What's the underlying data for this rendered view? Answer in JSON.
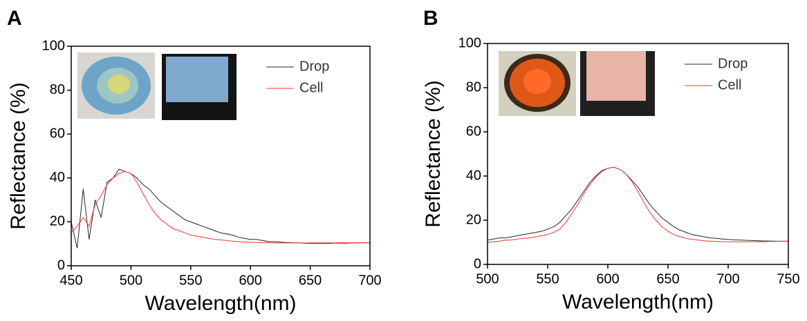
{
  "chart_data": [
    {
      "type": "line",
      "panel_label": "A",
      "xlabel": "Wavelength(nm)",
      "ylabel": "Reflectance (%)",
      "x": [
        450,
        455,
        460,
        465,
        470,
        475,
        480,
        485,
        490,
        495,
        500,
        505,
        510,
        515,
        520,
        525,
        530,
        535,
        540,
        545,
        550,
        555,
        560,
        565,
        570,
        575,
        580,
        585,
        590,
        595,
        600,
        605,
        610,
        615,
        620,
        625,
        630,
        635,
        640,
        645,
        650,
        655,
        660,
        665,
        670,
        675,
        680,
        685,
        690,
        695,
        700
      ],
      "series": [
        {
          "name": "Drop",
          "color": "#222222",
          "values": [
            20,
            8,
            35,
            12,
            30,
            22,
            38,
            40,
            44,
            43,
            42,
            40,
            37,
            35,
            32,
            29,
            27,
            25,
            23,
            21,
            20,
            19,
            18,
            17,
            16,
            15,
            14.5,
            14,
            13,
            12.5,
            12,
            12,
            11.5,
            11,
            11,
            10.8,
            10.6,
            10.5,
            10.4,
            10.3,
            10.2,
            10.2,
            10.2,
            10.2,
            10.3,
            10.3,
            10.3,
            10.4,
            10.4,
            10.5,
            10.5
          ]
        },
        {
          "name": "Cell",
          "color": "#ff3030",
          "values": [
            15,
            18,
            22,
            18,
            28,
            32,
            37,
            40,
            42,
            43,
            42,
            38,
            33,
            28,
            24,
            21,
            19,
            17,
            16,
            15,
            14,
            13.5,
            13,
            12.5,
            12,
            11.8,
            11.5,
            11.2,
            11,
            10.8,
            10.7,
            10.6,
            10.5,
            10.5,
            10.4,
            10.4,
            10.4,
            10.4,
            10.4,
            10.4,
            10.4,
            10.4,
            10.4,
            10.4,
            10.4,
            10.5,
            10.5,
            10.5,
            10.5,
            10.5,
            10.5
          ]
        }
      ],
      "xlim": [
        450,
        700
      ],
      "ylim": [
        0,
        100
      ],
      "xticks": [
        450,
        500,
        550,
        600,
        650,
        700
      ],
      "yticks": [
        0,
        20,
        40,
        60,
        80,
        100
      ]
    },
    {
      "type": "line",
      "panel_label": "B",
      "xlabel": "Wavelength(nm)",
      "ylabel": "Reflectance (%)",
      "x": [
        500,
        505,
        510,
        515,
        520,
        525,
        530,
        535,
        540,
        545,
        550,
        555,
        560,
        565,
        570,
        575,
        580,
        585,
        590,
        595,
        600,
        605,
        610,
        615,
        620,
        625,
        630,
        635,
        640,
        645,
        650,
        655,
        660,
        665,
        670,
        675,
        680,
        685,
        690,
        695,
        700,
        705,
        710,
        715,
        720,
        725,
        730,
        735,
        740,
        745,
        750
      ],
      "series": [
        {
          "name": "Drop",
          "color": "#222222",
          "values": [
            11,
            11.5,
            12,
            12,
            12.5,
            13,
            13.5,
            14,
            14.5,
            15,
            16,
            17,
            19,
            22,
            25,
            29,
            33,
            37,
            40,
            42.5,
            43.5,
            44,
            43,
            41,
            38,
            35,
            31,
            27,
            24,
            21,
            19,
            17,
            15.5,
            14.5,
            13.5,
            13,
            12.5,
            12,
            11.8,
            11.5,
            11.3,
            11.1,
            11,
            10.9,
            10.8,
            10.7,
            10.6,
            10.6,
            10.5,
            10.5,
            10.5
          ]
        },
        {
          "name": "Cell",
          "color": "#ff3030",
          "values": [
            10,
            10.2,
            10.5,
            11,
            11,
            11.5,
            11.8,
            12,
            12.5,
            13,
            13.5,
            14.5,
            16,
            19,
            23,
            27,
            32,
            36,
            39.5,
            42,
            43.5,
            44,
            43,
            41,
            37.5,
            33,
            28,
            23.5,
            20,
            17,
            15,
            13.5,
            12.5,
            11.8,
            11.3,
            11,
            10.7,
            10.5,
            10.4,
            10.3,
            10.2,
            10.2,
            10.2,
            10.2,
            10.2,
            10.3,
            10.3,
            10.4,
            10.4,
            10.5,
            10.5
          ]
        }
      ],
      "xlim": [
        500,
        750
      ],
      "ylim": [
        0,
        100
      ],
      "xticks": [
        500,
        550,
        600,
        650,
        700,
        750
      ],
      "yticks": [
        0,
        20,
        40,
        60,
        80,
        100
      ]
    }
  ]
}
